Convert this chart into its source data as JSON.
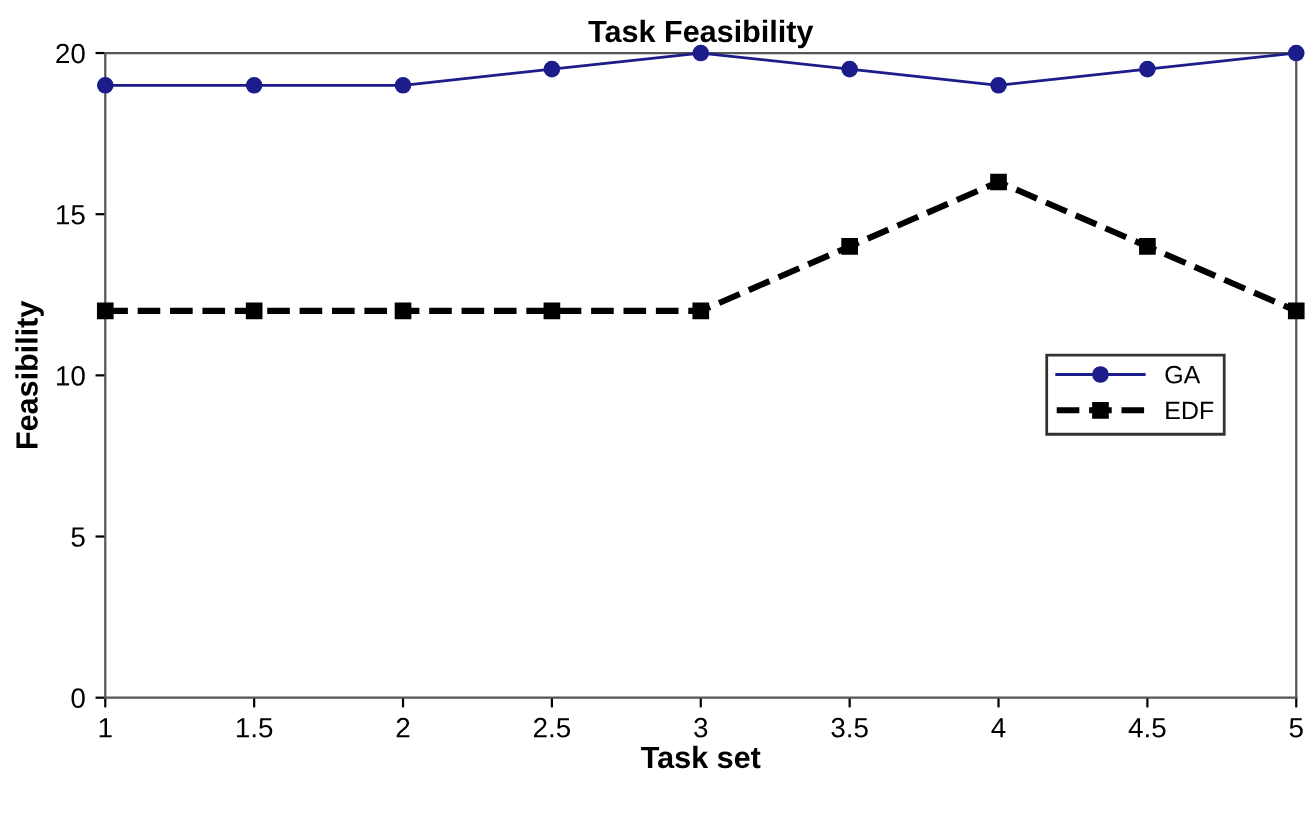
{
  "chart_data": {
    "type": "line",
    "title": "Task Feasibility",
    "xlabel": "Task set",
    "ylabel": "Feasibility",
    "x": [
      1,
      1.5,
      2,
      2.5,
      3,
      3.5,
      4,
      4.5,
      5
    ],
    "series": [
      {
        "name": "GA",
        "color": "#1c1c8a",
        "values": [
          19,
          19,
          19,
          19.5,
          20,
          19.5,
          19,
          19.5,
          20
        ],
        "marker": "circle",
        "line_style": "solid"
      },
      {
        "name": "EDF",
        "color": "#000000",
        "values": [
          12,
          12,
          12,
          12,
          12,
          14,
          16,
          14,
          12
        ],
        "marker": "square",
        "line_style": "dashed"
      }
    ],
    "xlim": [
      1,
      5
    ],
    "ylim": [
      0,
      20
    ],
    "xticks": [
      1,
      1.5,
      2,
      2.5,
      3,
      3.5,
      4,
      4.5,
      5
    ],
    "yticks": [
      0,
      5,
      10,
      15,
      20
    ],
    "grid": false,
    "legend": "center right"
  }
}
